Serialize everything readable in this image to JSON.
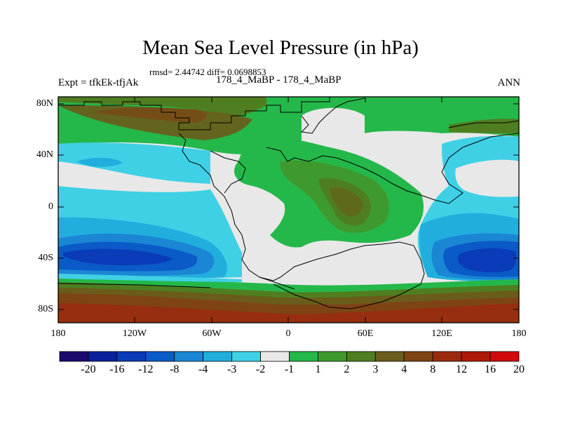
{
  "title": "Mean Sea Level Pressure (in hPa)",
  "stats": "rmsd= 2.44742 diff= 0.0698853",
  "expt": "Expt = tfkEk-tfjAk",
  "case_label": "178_4_MaBP - 178_4_MaBP",
  "season": "ANN",
  "y_ticks": [
    "80N",
    "40N",
    "0",
    "40S",
    "80S"
  ],
  "x_ticks": [
    "180",
    "120W",
    "60W",
    "0",
    "60E",
    "120E",
    "180"
  ],
  "colorbar": {
    "labels": [
      "-20",
      "-16",
      "-12",
      "-8",
      "-4",
      "-3",
      "-2",
      "-1",
      "1",
      "2",
      "3",
      "4",
      "8",
      "12",
      "16",
      "20"
    ],
    "colors": [
      "#1c0a6e",
      "#0a1f9a",
      "#0a3bb8",
      "#0a5ac8",
      "#1a86d4",
      "#21aedd",
      "#3fd0e6",
      "#e8e8e8",
      "#24b84a",
      "#3e9a2e",
      "#4f7e20",
      "#6a5c1a",
      "#7e4414",
      "#9a2a0e",
      "#b01a08",
      "#d00a0a"
    ]
  },
  "colors": {
    "land_outline": "#000000",
    "frame": "#000000"
  }
}
